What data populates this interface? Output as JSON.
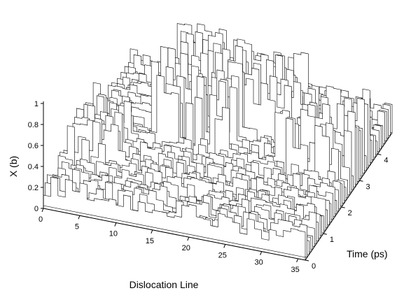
{
  "chart_data": {
    "type": "surface-3d",
    "title": "",
    "xlabel": "Dislocation Line",
    "ylabel": "Time (ps)",
    "zlabel": "X (b)",
    "x_ticks": [
      "0",
      "5",
      "10",
      "15",
      "20",
      "25",
      "30",
      "35"
    ],
    "y_ticks": [
      "0",
      "1",
      "2",
      "3",
      "4"
    ],
    "z_ticks": [
      "0",
      "0.2",
      "0.4",
      "0.6",
      "0.8",
      "1"
    ],
    "xlim": [
      0,
      36
    ],
    "ylim": [
      0,
      4.8
    ],
    "zlim": [
      0,
      1
    ],
    "n_segments": 36,
    "n_traces": 48,
    "line_color": "#000000",
    "background": "#ffffff",
    "grid": false,
    "surface": {
      "baseline_range": [
        0.12,
        0.32
      ],
      "kink_events": [
        {
          "x_range": [
            1,
            6
          ],
          "t_range": [
            0.9,
            2.4
          ],
          "peak": 0.62
        },
        {
          "x_range": [
            9,
            19
          ],
          "t_range": [
            2.2,
            4.1
          ],
          "peak": 0.95
        },
        {
          "x_range": [
            18,
            25
          ],
          "t_range": [
            3.1,
            4.3
          ],
          "peak": 0.78
        },
        {
          "x_range": [
            26,
            35
          ],
          "t_range": [
            2.1,
            3.6
          ],
          "peak": 0.72
        }
      ]
    }
  }
}
